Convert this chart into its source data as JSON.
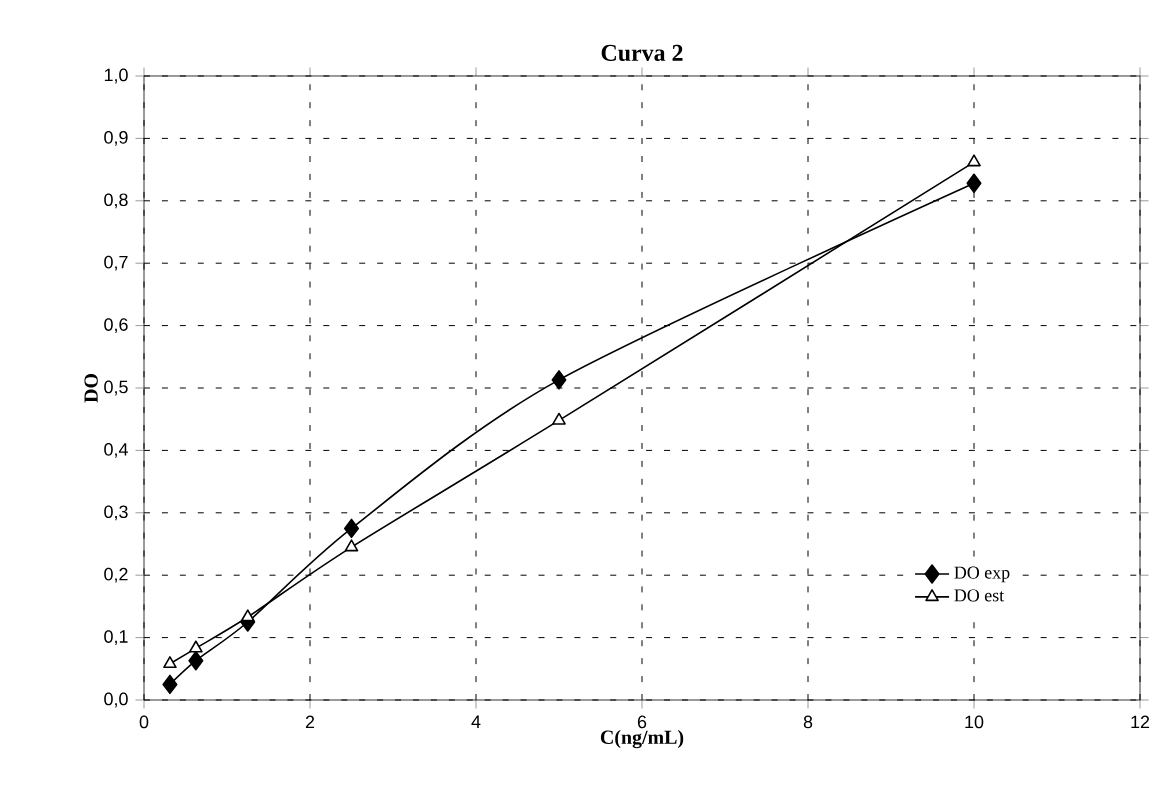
{
  "chart_data": {
    "type": "line",
    "title": "Curva 2",
    "xlabel": "C(ng/mL)",
    "ylabel": "DO",
    "x": [
      0.3125,
      0.625,
      1.25,
      2.5,
      5,
      10
    ],
    "series": [
      {
        "name": "DO exp",
        "color": "#000000",
        "marker": "diamond",
        "values": [
          0.025,
          0.063,
          0.125,
          0.275,
          0.513,
          0.828
        ]
      },
      {
        "name": "DO est",
        "color": "#000000",
        "marker": "triangle",
        "values": [
          0.058,
          0.083,
          0.133,
          0.245,
          0.448,
          0.862
        ]
      }
    ],
    "xlim": [
      0,
      12
    ],
    "xticks": [
      0,
      2,
      4,
      6,
      8,
      10,
      12
    ],
    "ylim": [
      0,
      1
    ],
    "yticks": [
      {
        "value": 0,
        "label": "0,0"
      },
      {
        "value": 0.1,
        "label": "0,1"
      },
      {
        "value": 0.2,
        "label": "0,2"
      },
      {
        "value": 0.3,
        "label": "0,3"
      },
      {
        "value": 0.4,
        "label": "0,4"
      },
      {
        "value": 0.5,
        "label": "0,5"
      },
      {
        "value": 0.6,
        "label": "0,6"
      },
      {
        "value": 0.7,
        "label": "0,7"
      },
      {
        "value": 0.8,
        "label": "0,8"
      },
      {
        "value": 0.9,
        "label": "0,9"
      },
      {
        "value": 1,
        "label": "1,0"
      }
    ],
    "grid": true,
    "legend": "bottom right",
    "line_style": "solid"
  }
}
